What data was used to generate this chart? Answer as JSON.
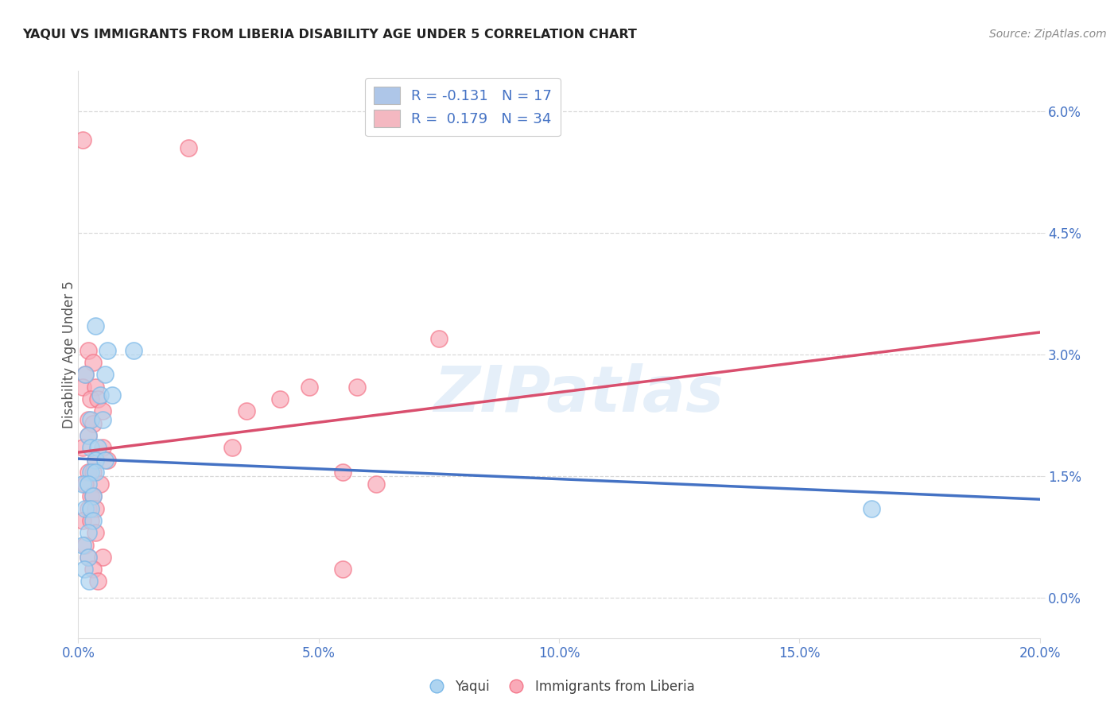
{
  "title": "YAQUI VS IMMIGRANTS FROM LIBERIA DISABILITY AGE UNDER 5 CORRELATION CHART",
  "source": "Source: ZipAtlas.com",
  "ylabel": "Disability Age Under 5",
  "xlabel_vals": [
    0.0,
    5.0,
    10.0,
    15.0,
    20.0
  ],
  "ylabel_vals": [
    0.0,
    1.5,
    3.0,
    4.5,
    6.0
  ],
  "xmin": 0.0,
  "xmax": 20.0,
  "ymin": -0.5,
  "ymax": 6.5,
  "legend_entries": [
    {
      "label_r": "R = -0.131",
      "label_n": "N = 17",
      "color": "#aec6e8"
    },
    {
      "label_r": "R =  0.179",
      "label_n": "N = 34",
      "color": "#f4b8c1"
    }
  ],
  "watermark": "ZIPatlas",
  "blue_color": "#7ab8e8",
  "pink_color": "#f4778a",
  "blue_fill": "#aed4f0",
  "pink_fill": "#f9aab8",
  "blue_line_color": "#4472c4",
  "pink_line_color": "#d94f6e",
  "pink_dash_color": "#e8909f",
  "blue_scatter": [
    [
      0.35,
      3.35
    ],
    [
      0.6,
      3.05
    ],
    [
      1.15,
      3.05
    ],
    [
      0.55,
      2.75
    ],
    [
      0.15,
      2.75
    ],
    [
      0.45,
      2.5
    ],
    [
      0.7,
      2.5
    ],
    [
      0.25,
      2.2
    ],
    [
      0.5,
      2.2
    ],
    [
      0.2,
      2.0
    ],
    [
      0.25,
      1.85
    ],
    [
      0.4,
      1.85
    ],
    [
      0.35,
      1.7
    ],
    [
      0.55,
      1.7
    ],
    [
      0.25,
      1.55
    ],
    [
      0.35,
      1.55
    ],
    [
      0.1,
      1.4
    ],
    [
      0.2,
      1.4
    ],
    [
      0.3,
      1.25
    ],
    [
      0.15,
      1.1
    ],
    [
      0.25,
      1.1
    ],
    [
      0.3,
      0.95
    ],
    [
      0.2,
      0.8
    ],
    [
      0.1,
      0.65
    ],
    [
      0.2,
      0.5
    ],
    [
      0.12,
      0.35
    ],
    [
      0.22,
      0.2
    ],
    [
      16.5,
      1.1
    ]
  ],
  "pink_scatter": [
    [
      0.1,
      5.65
    ],
    [
      2.3,
      5.55
    ],
    [
      0.2,
      3.05
    ],
    [
      0.3,
      2.9
    ],
    [
      0.15,
      2.75
    ],
    [
      0.1,
      2.6
    ],
    [
      0.35,
      2.6
    ],
    [
      0.25,
      2.45
    ],
    [
      0.4,
      2.45
    ],
    [
      0.5,
      2.3
    ],
    [
      0.2,
      2.2
    ],
    [
      0.3,
      2.15
    ],
    [
      0.2,
      2.0
    ],
    [
      0.1,
      1.85
    ],
    [
      0.5,
      1.85
    ],
    [
      0.35,
      1.7
    ],
    [
      0.6,
      1.7
    ],
    [
      0.2,
      1.55
    ],
    [
      0.3,
      1.55
    ],
    [
      0.45,
      1.4
    ],
    [
      0.15,
      1.4
    ],
    [
      0.25,
      1.25
    ],
    [
      0.3,
      1.25
    ],
    [
      0.2,
      1.1
    ],
    [
      0.35,
      1.1
    ],
    [
      0.1,
      0.95
    ],
    [
      0.25,
      0.95
    ],
    [
      0.35,
      0.8
    ],
    [
      0.15,
      0.65
    ],
    [
      0.2,
      0.5
    ],
    [
      0.5,
      0.5
    ],
    [
      0.3,
      0.35
    ],
    [
      0.4,
      0.2
    ],
    [
      7.5,
      3.2
    ],
    [
      5.5,
      1.55
    ],
    [
      5.8,
      2.6
    ],
    [
      4.8,
      2.6
    ],
    [
      4.2,
      2.45
    ],
    [
      3.5,
      2.3
    ],
    [
      3.2,
      1.85
    ],
    [
      6.2,
      1.4
    ],
    [
      5.5,
      0.35
    ]
  ],
  "blue_R": -0.131,
  "blue_N": 17,
  "pink_R": 0.179,
  "pink_N": 34,
  "grid_color": "#d0d0d0",
  "background_color": "#ffffff"
}
